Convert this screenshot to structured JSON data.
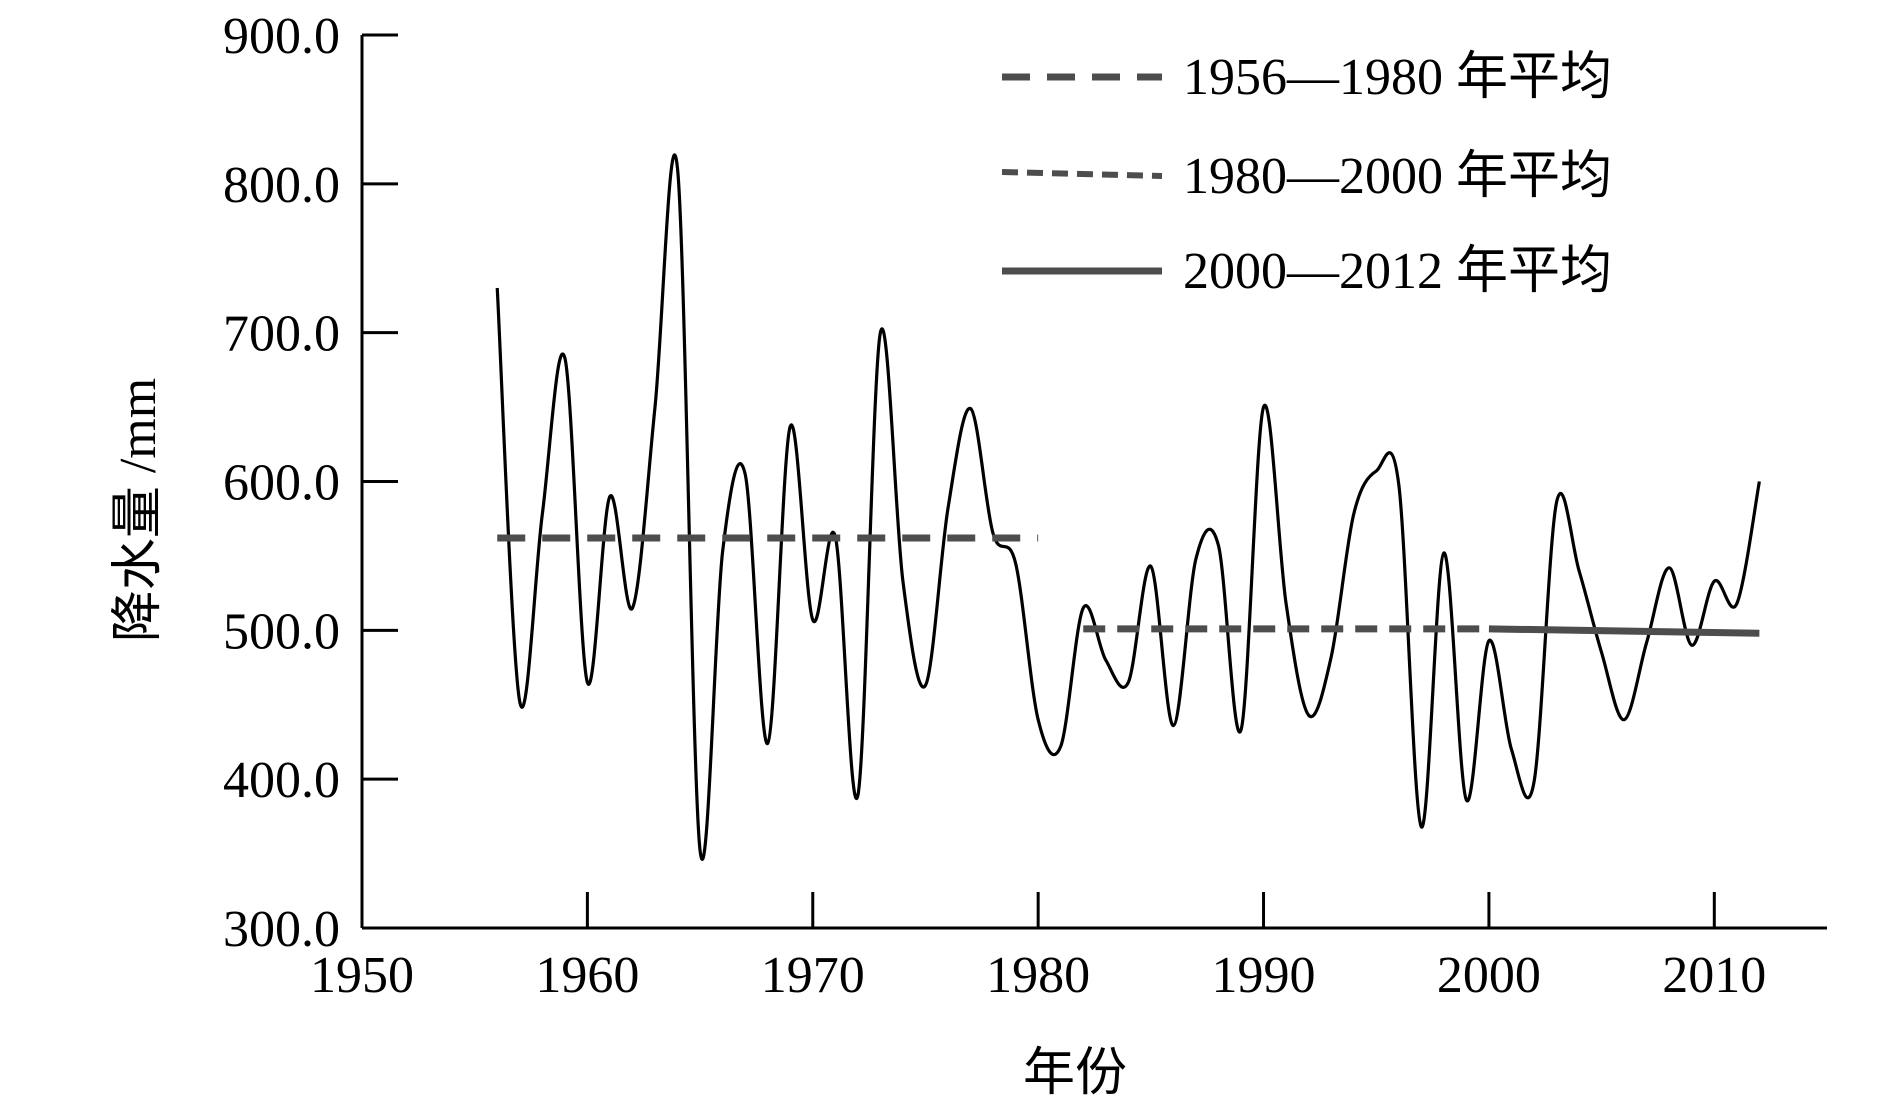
{
  "chart_data": {
    "type": "line",
    "title": "",
    "xlabel": "年份",
    "ylabel": "降水量 /mm",
    "xlim": [
      1950,
      2015
    ],
    "ylim": [
      300,
      900
    ],
    "xticks": [
      1950,
      1960,
      1970,
      1980,
      1990,
      2000,
      2010
    ],
    "xtick_labels": [
      "1950",
      "1960",
      "1970",
      "1980",
      "1990",
      "2000",
      "2010"
    ],
    "yticks": [
      300,
      400,
      500,
      600,
      700,
      800,
      900
    ],
    "ytick_labels": [
      "300.0",
      "400.0",
      "500.0",
      "600.0",
      "700.0",
      "800.0",
      "900.0"
    ],
    "grid": false,
    "legend_position": "top-right",
    "colors": {
      "precip": "#000000",
      "averages": "#4d4d4d"
    },
    "series": [
      {
        "type": "line",
        "x": [
          1956,
          1957,
          1958,
          1959,
          1960,
          1961,
          1962,
          1963,
          1964,
          1965,
          1966,
          1967,
          1968,
          1969,
          1970,
          1971,
          1972,
          1973,
          1974,
          1975,
          1976,
          1977,
          1978,
          1979,
          1980,
          1981,
          1982,
          1983,
          1984,
          1985,
          1986,
          1987,
          1988,
          1989,
          1990,
          1991,
          1992,
          1993,
          1994,
          1995,
          1996,
          1997,
          1998,
          1999,
          2000,
          2001,
          2002,
          2003,
          2004,
          2005,
          2006,
          2007,
          2008,
          2009,
          2010,
          2011,
          2012
        ],
        "values": [
          730,
          452,
          578,
          683,
          465,
          590,
          515,
          650,
          810,
          352,
          553,
          605,
          424,
          637,
          507,
          563,
          389,
          700,
          533,
          463,
          582,
          649,
          565,
          545,
          440,
          422,
          515,
          480,
          465,
          543,
          436,
          548,
          557,
          433,
          650,
          518,
          443,
          482,
          578,
          607,
          598,
          368,
          552,
          386,
          493,
          420,
          398,
          586,
          540,
          485,
          440,
          492,
          542,
          490,
          533,
          518,
          600
        ]
      },
      {
        "name": "1956—1980 年平均",
        "style": "dashed",
        "x": [
          1956,
          1980
        ],
        "values": [
          562,
          562
        ]
      },
      {
        "name": "1980—2000 年平均",
        "style": "short-dashed",
        "x": [
          1982,
          2000
        ],
        "values": [
          501,
          501
        ]
      },
      {
        "name": "2000—2012 年平均",
        "style": "solid",
        "x": [
          2000,
          2012
        ],
        "values": [
          501,
          498
        ]
      }
    ]
  }
}
